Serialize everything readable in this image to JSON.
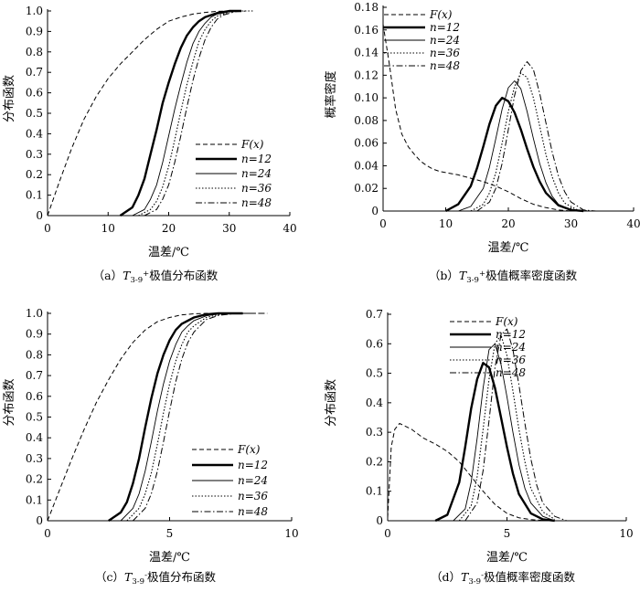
{
  "chart_data": [
    {
      "panel_label": "(a)",
      "caption_tail": "极值分布函数",
      "type": "line",
      "title": "",
      "xlabel": "温差/℃",
      "ylabel": "分布函数",
      "xlim": [
        0,
        40
      ],
      "ylim": [
        0,
        1.0
      ],
      "xticks": [
        "0",
        "10",
        "20",
        "30",
        "40"
      ],
      "yticks": [
        "0",
        "0.1",
        "0.2",
        "0.3",
        "0.4",
        "0.5",
        "0.6",
        "0.7",
        "0.8",
        "0.9",
        "1.0"
      ],
      "legend_position": "bottom-right",
      "series": [
        {
          "name": "F(x)",
          "style": "dashed",
          "x": [
            0,
            2,
            4,
            6,
            8,
            10,
            12,
            14,
            16,
            18,
            20,
            22,
            24,
            26,
            28,
            30,
            32
          ],
          "y": [
            0,
            0.17,
            0.33,
            0.47,
            0.58,
            0.67,
            0.74,
            0.8,
            0.86,
            0.91,
            0.95,
            0.97,
            0.985,
            0.993,
            0.998,
            1.0,
            1.0
          ]
        },
        {
          "name": "n=12",
          "style": "thick",
          "x": [
            12,
            14,
            15,
            16,
            17,
            18,
            19,
            20,
            21,
            22,
            23,
            24,
            25,
            26,
            28,
            30,
            32
          ],
          "y": [
            0,
            0.04,
            0.1,
            0.18,
            0.3,
            0.42,
            0.55,
            0.65,
            0.74,
            0.82,
            0.88,
            0.92,
            0.95,
            0.97,
            0.99,
            1.0,
            1.0
          ]
        },
        {
          "name": "n=24",
          "style": "thin",
          "x": [
            14,
            16,
            17,
            18,
            19,
            20,
            21,
            22,
            23,
            24,
            25,
            26,
            27,
            28,
            30,
            32
          ],
          "y": [
            0,
            0.03,
            0.08,
            0.15,
            0.26,
            0.39,
            0.52,
            0.64,
            0.75,
            0.84,
            0.9,
            0.94,
            0.97,
            0.985,
            0.996,
            1.0
          ]
        },
        {
          "name": "n=36",
          "style": "dotted",
          "x": [
            15,
            17,
            18,
            19,
            20,
            21,
            22,
            23,
            24,
            25,
            26,
            27,
            28,
            30,
            32,
            34
          ],
          "y": [
            0,
            0.03,
            0.07,
            0.14,
            0.24,
            0.37,
            0.51,
            0.64,
            0.75,
            0.85,
            0.91,
            0.95,
            0.975,
            0.995,
            1.0,
            1.0
          ]
        },
        {
          "name": "n=48",
          "style": "dashdot",
          "x": [
            16,
            18,
            19,
            20,
            21,
            22,
            23,
            24,
            25,
            26,
            27,
            28,
            29,
            31,
            33
          ],
          "y": [
            0,
            0.03,
            0.08,
            0.15,
            0.26,
            0.39,
            0.53,
            0.66,
            0.77,
            0.86,
            0.92,
            0.96,
            0.98,
            0.997,
            1.0
          ]
        }
      ]
    },
    {
      "panel_label": "(b)",
      "caption_tail": "极值概率密度函数",
      "type": "line",
      "title": "",
      "xlabel": "温差/℃",
      "ylabel": "概率密度",
      "xlim": [
        0,
        40
      ],
      "ylim": [
        0,
        0.18
      ],
      "xticks": [
        "0",
        "10",
        "20",
        "30",
        "40"
      ],
      "yticks": [
        "0",
        "0.02",
        "0.04",
        "0.06",
        "0.08",
        "0.10",
        "0.12",
        "0.14",
        "0.16",
        "0.18"
      ],
      "legend_position": "top-right",
      "series": [
        {
          "name": "F(x)",
          "style": "dashed",
          "x": [
            0,
            1,
            2,
            3,
            4,
            5,
            6,
            7,
            8,
            9,
            10,
            12,
            14,
            16,
            18,
            20,
            22,
            24,
            26,
            28,
            30,
            32
          ],
          "y": [
            0.165,
            0.13,
            0.09,
            0.068,
            0.057,
            0.05,
            0.044,
            0.04,
            0.037,
            0.035,
            0.034,
            0.032,
            0.029,
            0.026,
            0.022,
            0.017,
            0.011,
            0.006,
            0.003,
            0.001,
            0.0,
            0.0
          ]
        },
        {
          "name": "n=12",
          "style": "thick",
          "x": [
            10,
            12,
            14,
            15,
            16,
            17,
            18,
            19,
            20,
            21,
            22,
            23,
            24,
            25,
            26,
            28,
            30,
            32
          ],
          "y": [
            0,
            0.006,
            0.022,
            0.038,
            0.057,
            0.077,
            0.093,
            0.1,
            0.097,
            0.087,
            0.072,
            0.055,
            0.039,
            0.026,
            0.016,
            0.005,
            0.001,
            0
          ]
        },
        {
          "name": "n=24",
          "style": "thin",
          "x": [
            12,
            14,
            16,
            17,
            18,
            19,
            20,
            21,
            22,
            23,
            24,
            25,
            26,
            27,
            28,
            30,
            32
          ],
          "y": [
            0,
            0.004,
            0.02,
            0.039,
            0.064,
            0.09,
            0.109,
            0.115,
            0.108,
            0.088,
            0.064,
            0.042,
            0.025,
            0.013,
            0.006,
            0.001,
            0
          ]
        },
        {
          "name": "n=36",
          "style": "dotted",
          "x": [
            14,
            16,
            17,
            18,
            19,
            20,
            21,
            22,
            23,
            24,
            25,
            26,
            27,
            28,
            29,
            31,
            33
          ],
          "y": [
            0,
            0.006,
            0.016,
            0.034,
            0.06,
            0.088,
            0.11,
            0.122,
            0.118,
            0.1,
            0.075,
            0.05,
            0.03,
            0.016,
            0.007,
            0.001,
            0
          ]
        },
        {
          "name": "n=48",
          "style": "dashdot",
          "x": [
            15,
            17,
            18,
            19,
            20,
            21,
            22,
            23,
            24,
            25,
            26,
            27,
            28,
            29,
            30,
            32,
            34
          ],
          "y": [
            0,
            0.008,
            0.02,
            0.042,
            0.072,
            0.102,
            0.124,
            0.132,
            0.125,
            0.104,
            0.078,
            0.052,
            0.031,
            0.017,
            0.008,
            0.001,
            0
          ]
        }
      ]
    },
    {
      "panel_label": "(c)",
      "caption_tail": "极值分布函数",
      "type": "line",
      "title": "",
      "xlabel": "温差/℃",
      "ylabel": "分布函数",
      "xlim": [
        0,
        10
      ],
      "ylim": [
        0,
        1.0
      ],
      "xticks": [
        "0",
        "5",
        "10"
      ],
      "yticks": [
        "0",
        "0.1",
        "0.2",
        "0.3",
        "0.4",
        "0.5",
        "0.6",
        "0.7",
        "0.8",
        "0.9",
        "1.0"
      ],
      "legend_position": "bottom-right",
      "series": [
        {
          "name": "F(x)",
          "style": "dashed",
          "x": [
            0,
            0.5,
            1,
            1.5,
            2,
            2.5,
            3,
            3.5,
            4,
            4.5,
            5,
            5.5,
            6,
            6.5,
            7,
            7.5
          ],
          "y": [
            0,
            0.15,
            0.3,
            0.44,
            0.57,
            0.68,
            0.78,
            0.86,
            0.92,
            0.96,
            0.98,
            0.993,
            0.998,
            1.0,
            1.0,
            1.0
          ]
        },
        {
          "name": "n=12",
          "style": "thick",
          "x": [
            2.5,
            3,
            3.25,
            3.5,
            3.75,
            4,
            4.25,
            4.5,
            4.75,
            5,
            5.25,
            5.5,
            6,
            6.5,
            7,
            8
          ],
          "y": [
            0,
            0.04,
            0.09,
            0.18,
            0.3,
            0.45,
            0.59,
            0.71,
            0.8,
            0.87,
            0.92,
            0.95,
            0.98,
            0.995,
            1.0,
            1.0
          ]
        },
        {
          "name": "n=24",
          "style": "thin",
          "x": [
            3,
            3.5,
            3.75,
            4,
            4.25,
            4.5,
            4.75,
            5,
            5.25,
            5.5,
            5.75,
            6,
            6.5,
            7,
            7.5,
            8.5
          ],
          "y": [
            0,
            0.06,
            0.13,
            0.24,
            0.38,
            0.53,
            0.66,
            0.77,
            0.85,
            0.91,
            0.94,
            0.965,
            0.988,
            0.997,
            1.0,
            1.0
          ]
        },
        {
          "name": "n=36",
          "style": "dotted",
          "x": [
            3.25,
            3.75,
            4,
            4.25,
            4.5,
            4.75,
            5,
            5.25,
            5.5,
            5.75,
            6,
            6.5,
            7,
            7.5,
            8.5
          ],
          "y": [
            0,
            0.06,
            0.13,
            0.23,
            0.37,
            0.52,
            0.66,
            0.77,
            0.85,
            0.91,
            0.94,
            0.98,
            0.994,
            1.0,
            1.0
          ]
        },
        {
          "name": "n=48",
          "style": "dashdot",
          "x": [
            3.5,
            4,
            4.25,
            4.5,
            4.75,
            5,
            5.25,
            5.5,
            5.75,
            6,
            6.5,
            7,
            7.5,
            8,
            9
          ],
          "y": [
            0,
            0.06,
            0.13,
            0.24,
            0.38,
            0.53,
            0.67,
            0.78,
            0.86,
            0.91,
            0.97,
            0.99,
            0.997,
            1.0,
            1.0
          ]
        }
      ]
    },
    {
      "panel_label": "(d)",
      "caption_tail": "极值概率密度函数",
      "type": "line",
      "title": "",
      "xlabel": "温差/℃",
      "ylabel": "分布函数",
      "xlim": [
        0,
        10
      ],
      "ylim": [
        0,
        0.7
      ],
      "xticks": [
        "0",
        "5",
        "10"
      ],
      "yticks": [
        "0",
        "0.1",
        "0.2",
        "0.3",
        "0.4",
        "0.5",
        "0.6",
        "0.7"
      ],
      "legend_position": "top-right",
      "series": [
        {
          "name": "F(x)",
          "style": "dashed",
          "x": [
            0,
            0.15,
            0.3,
            0.5,
            0.75,
            1,
            1.5,
            2,
            2.5,
            3,
            3.5,
            4,
            4.5,
            5,
            5.5,
            6,
            6.5,
            7
          ],
          "y": [
            0.01,
            0.25,
            0.31,
            0.33,
            0.32,
            0.31,
            0.28,
            0.26,
            0.235,
            0.2,
            0.15,
            0.1,
            0.055,
            0.025,
            0.01,
            0.004,
            0.001,
            0
          ]
        },
        {
          "name": "n=12",
          "style": "thick",
          "x": [
            2,
            2.5,
            3,
            3.25,
            3.5,
            3.75,
            4,
            4.25,
            4.5,
            4.75,
            5,
            5.25,
            5.5,
            6,
            6.5,
            7
          ],
          "y": [
            0,
            0.02,
            0.13,
            0.25,
            0.38,
            0.48,
            0.535,
            0.52,
            0.45,
            0.35,
            0.25,
            0.16,
            0.09,
            0.025,
            0.005,
            0
          ]
        },
        {
          "name": "n=24",
          "style": "thin",
          "x": [
            2.75,
            3.25,
            3.5,
            3.75,
            4,
            4.25,
            4.5,
            4.75,
            5,
            5.25,
            5.5,
            5.75,
            6,
            6.5,
            7
          ],
          "y": [
            0,
            0.04,
            0.13,
            0.28,
            0.45,
            0.58,
            0.6,
            0.53,
            0.42,
            0.3,
            0.19,
            0.11,
            0.06,
            0.015,
            0
          ]
        },
        {
          "name": "n=36",
          "style": "dotted",
          "x": [
            3,
            3.5,
            3.75,
            4,
            4.25,
            4.5,
            4.75,
            5,
            5.25,
            5.5,
            5.75,
            6,
            6.5,
            7
          ],
          "y": [
            0,
            0.05,
            0.15,
            0.31,
            0.48,
            0.6,
            0.63,
            0.56,
            0.44,
            0.31,
            0.2,
            0.11,
            0.03,
            0.005
          ]
        },
        {
          "name": "n=48",
          "style": "dashdot",
          "x": [
            3.25,
            3.75,
            4,
            4.25,
            4.5,
            4.75,
            5,
            5.25,
            5.5,
            5.75,
            6,
            6.25,
            6.5,
            7,
            7.5
          ],
          "y": [
            0,
            0.06,
            0.17,
            0.34,
            0.52,
            0.63,
            0.65,
            0.58,
            0.46,
            0.33,
            0.21,
            0.12,
            0.06,
            0.015,
            0
          ]
        }
      ]
    }
  ],
  "captions": [
    {
      "prefix": "（a）",
      "var_main": "T",
      "var_sub": "3-9",
      "var_sup": "+",
      "suffix": "极值分布函数"
    },
    {
      "prefix": "（b）",
      "var_main": "T",
      "var_sub": "3-9",
      "var_sup": "+",
      "suffix": "极值概率密度函数"
    },
    {
      "prefix": "（c）",
      "var_main": "T",
      "var_sub": "3-9",
      "var_sup": "-",
      "suffix": "极值分布函数"
    },
    {
      "prefix": "（d）",
      "var_main": "T",
      "var_sub": "3-9",
      "var_sup": "-",
      "suffix": "极值概率密度函数"
    }
  ]
}
